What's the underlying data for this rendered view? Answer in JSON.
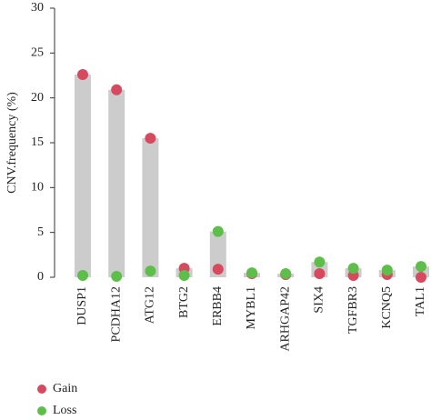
{
  "chart_data": {
    "type": "dot-bar",
    "y_label": "CNV.frequency (%)",
    "categories": [
      "DUSP1",
      "PCDHA12",
      "ATG12",
      "BTG2",
      "ERBB4",
      "MYBL1",
      "ARHGAP42",
      "SIX4",
      "TGFBR3",
      "KCNQ5",
      "TAL1"
    ],
    "series": [
      {
        "name": "Gain",
        "color": "#d6495f",
        "values": [
          22.6,
          20.9,
          15.5,
          1.0,
          0.9,
          0.4,
          0.3,
          0.4,
          0.2,
          0.3,
          0.0
        ]
      },
      {
        "name": "Loss",
        "color": "#5dbf4a",
        "values": [
          0.2,
          0.1,
          0.7,
          0.2,
          5.1,
          0.5,
          0.4,
          1.7,
          1.0,
          0.8,
          1.2
        ]
      }
    ],
    "bar_color": "#cccccc",
    "ylim": [
      0,
      30
    ],
    "yticks": [
      0,
      5,
      10,
      15,
      20,
      25,
      30
    ]
  }
}
